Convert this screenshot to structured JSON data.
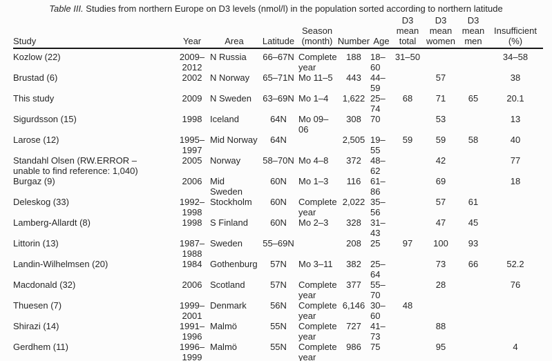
{
  "caption": {
    "label": "Table III.",
    "text": " Studies from northern Europe on D3 levels (nmol/l) in the population sorted according to northern latitude"
  },
  "table": {
    "columns": [
      {
        "key": "study",
        "header": "Study"
      },
      {
        "key": "year",
        "header": "Year"
      },
      {
        "key": "area",
        "header": "Area"
      },
      {
        "key": "latitude",
        "header": "Latitude"
      },
      {
        "key": "season",
        "header": "Season\n(month)"
      },
      {
        "key": "number",
        "header": "Number"
      },
      {
        "key": "age",
        "header": "Age"
      },
      {
        "key": "total",
        "header": "D3\nmean\ntotal"
      },
      {
        "key": "women",
        "header": "D3\nmean\nwomen"
      },
      {
        "key": "men",
        "header": "D3\nmean\nmen"
      },
      {
        "key": "insufficient",
        "header": "Insufficient\n(%)"
      }
    ],
    "rows": [
      {
        "study": "Kozlow (22)",
        "year": "2009–\n2012",
        "area": "N Russia",
        "latitude": "66–67N",
        "season": "Complete\nyear",
        "number": "188",
        "age": "18–\n60",
        "total": "31–50",
        "women": "",
        "men": "",
        "insufficient": "34–58"
      },
      {
        "study": "Brustad (6)",
        "year": "2002",
        "area": "N Norway",
        "latitude": "65–71N",
        "season": "Mo 11–5",
        "number": "443",
        "age": "44–\n59",
        "total": "",
        "women": "57",
        "men": "",
        "insufficient": "38"
      },
      {
        "study": "This study",
        "year": "2009",
        "area": "N Sweden",
        "latitude": "63–69N",
        "season": "Mo 1–4",
        "number": "1,622",
        "age": "25–\n74",
        "total": "68",
        "women": "71",
        "men": "65",
        "insufficient": "20.1"
      },
      {
        "study": "Sigurdsson (15)",
        "year": "1998",
        "area": "Iceland",
        "latitude": "64N",
        "season": "Mo 09–\n06",
        "number": "308",
        "age": "70",
        "total": "",
        "women": "53",
        "men": "",
        "insufficient": "13"
      },
      {
        "study": "Larose (12)",
        "year": "1995–\n1997",
        "area": "Mid Norway",
        "latitude": "64N",
        "season": "",
        "number": "2,505",
        "age": "19–\n55",
        "total": "59",
        "women": "59",
        "men": "58",
        "insufficient": "40"
      },
      {
        "study": "Standahl Olsen (RW.ERROR –\nunable to find reference: 1,040)",
        "year": "2005",
        "area": "Norway",
        "latitude": "58–70N",
        "season": "Mo 4–8",
        "number": "372",
        "age": "48–\n62",
        "total": "",
        "women": "42",
        "men": "",
        "insufficient": "77"
      },
      {
        "study": "Burgaz (9)",
        "year": "2006",
        "area": "Mid\nSweden",
        "latitude": "60N",
        "season": "Mo 1–3",
        "number": "116",
        "age": "61–\n86",
        "total": "",
        "women": "69",
        "men": "",
        "insufficient": "18"
      },
      {
        "study": "Deleskog (33)",
        "year": "1992–\n1998",
        "area": "Stockholm",
        "latitude": "60N",
        "season": "Complete\nyear",
        "number": "2,022",
        "age": "35–\n56",
        "total": "",
        "women": "57",
        "men": "61",
        "insufficient": ""
      },
      {
        "study": "Lamberg-Allardt (8)",
        "year": "1998",
        "area": "S Finland",
        "latitude": "60N",
        "season": "Mo 2–3",
        "number": "328",
        "age": "31–\n43",
        "total": "",
        "women": "47",
        "men": "45",
        "insufficient": ""
      },
      {
        "study": "Littorin (13)",
        "year": "1987–\n1988",
        "area": "Sweden",
        "latitude": "55–69N",
        "season": "",
        "number": "208",
        "age": "25",
        "total": "97",
        "women": "100",
        "men": "93",
        "insufficient": ""
      },
      {
        "study": "Landin-Wilhelmsen (20)",
        "year": "1984",
        "area": "Gothenburg",
        "latitude": "57N",
        "season": "Mo 3–11",
        "number": "382",
        "age": "25–\n64",
        "total": "",
        "women": "73",
        "men": "66",
        "insufficient": "52.2"
      },
      {
        "study": "Macdonald (32)",
        "year": "2006",
        "area": "Scotland",
        "latitude": "57N",
        "season": "Complete\nyear",
        "number": "377",
        "age": "55–\n70",
        "total": "",
        "women": "28",
        "men": "",
        "insufficient": "76"
      },
      {
        "study": "Thuesen (7)",
        "year": "1999–\n2001",
        "area": "Denmark",
        "latitude": "56N",
        "season": "Complete\nyear",
        "number": "6,146",
        "age": "30–\n60",
        "total": "48",
        "women": "",
        "men": "",
        "insufficient": ""
      },
      {
        "study": "Shirazi (14)",
        "year": "1991–\n1996",
        "area": "Malmö",
        "latitude": "55N",
        "season": "Complete\nyear",
        "number": "727",
        "age": "41–\n73",
        "total": "",
        "women": "88",
        "men": "",
        "insufficient": ""
      },
      {
        "study": "Gerdhem (11)",
        "year": "1996–\n1999",
        "area": "Malmö",
        "latitude": "55N",
        "season": "Complete\nyear",
        "number": "986",
        "age": "75",
        "total": "",
        "women": "95",
        "men": "",
        "insufficient": "4"
      }
    ]
  }
}
